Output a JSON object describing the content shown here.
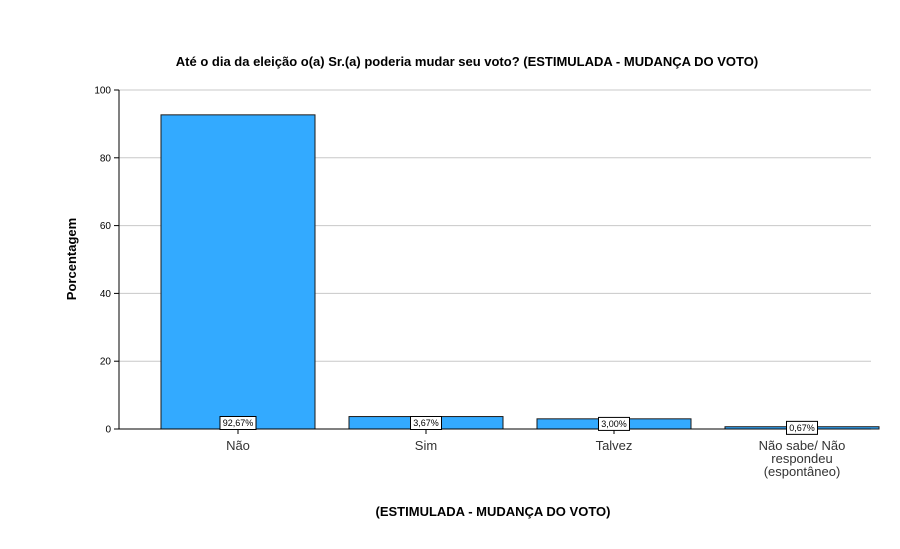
{
  "chart_data": {
    "type": "bar",
    "title": "Até o dia da eleição o(a) Sr.(a) poderia mudar seu voto? (ESTIMULADA - MUDANÇA DO VOTO)",
    "xlabel": "(ESTIMULADA - MUDANÇA DO VOTO)",
    "ylabel": "Porcentagem",
    "categories": [
      [
        "Não"
      ],
      [
        "Sim"
      ],
      [
        "Talvez"
      ],
      [
        "Não sabe/ Não",
        "respondeu",
        "(espontâneo)"
      ]
    ],
    "values": [
      92.67,
      3.67,
      3.0,
      0.67
    ],
    "data_labels": [
      "92,67%",
      "3,67%",
      "3,00%",
      "0,67%"
    ],
    "ylim": [
      0,
      100
    ],
    "yticks": [
      0,
      20,
      40,
      60,
      80,
      100
    ],
    "grid": true,
    "bar_color": "#33aaff",
    "bar_edge_color": "#1a1a1a"
  }
}
